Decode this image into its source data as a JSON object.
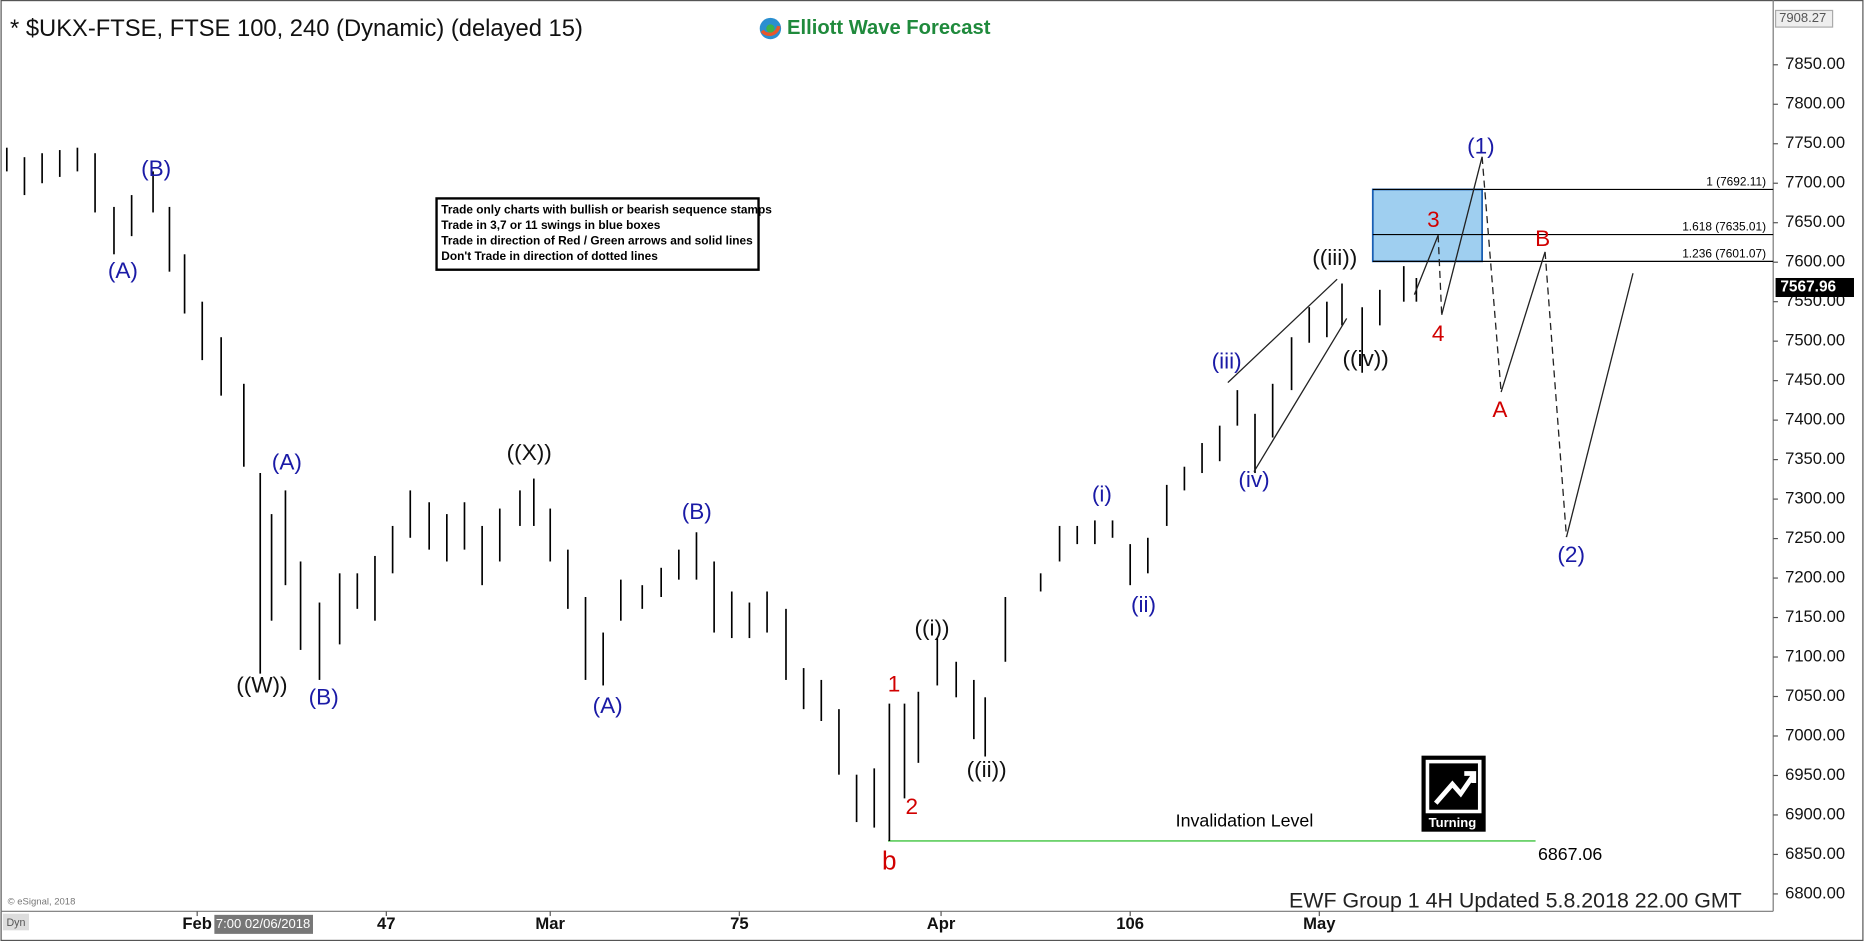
{
  "chart_data": {
    "type": "ohlc",
    "title": "* $UKX-FTSE, FTSE 100, 240 (Dynamic) (delayed 15)",
    "logo": "Elliott Wave Forecast",
    "notes": [
      "Trade only charts with bullish or bearish sequence stamps",
      "Trade in 3,7 or 11 swings in blue boxes",
      "Trade in direction of Red / Green arrows and solid lines",
      "Don't Trade in direction of dotted lines"
    ],
    "color": "#000000",
    "x": [
      16.9,
      18.3,
      19.7,
      21.1,
      22.5,
      23.9,
      25.4,
      26.8,
      28.5,
      29.8,
      31.0,
      32.4,
      33.9,
      35.7,
      37.0,
      37.9,
      39.0,
      40.2,
      41.7,
      43.3,
      44.7,
      46.1,
      47.5,
      48.9,
      50.4,
      51.8,
      53.2,
      54.6,
      56.0,
      57.6,
      58.7,
      60.0,
      61.4,
      62.8,
      64.2,
      65.6,
      67.3,
      68.8,
      70.2,
      71.6,
      73.0,
      74.4,
      75.8,
      77.2,
      78.7,
      80.1,
      81.5,
      82.9,
      84.3,
      85.7,
      86.9,
      88.1,
      89.2,
      90.7,
      92.2,
      93.6,
      94.5,
      96.1,
      97.5,
      98.9,
      100.4,
      101.8,
      103.2,
      104.6,
      106.0,
      107.4,
      108.9,
      110.3,
      111.7,
      113.1,
      114.5,
      115.9,
      117.3,
      118.8,
      120.2,
      121.6,
      122.8,
      124.4,
      125.8,
      127.7,
      128.7
    ],
    "high": [
      7745,
      7733,
      7738,
      7742,
      7745,
      7738,
      7670,
      7685,
      7715,
      7670,
      7610,
      7550,
      7505,
      7446,
      7333,
      7281,
      7311,
      7221,
      7169,
      7206,
      7206,
      7228,
      7266,
      7311,
      7296,
      7281,
      7296,
      7266,
      7288,
      7311,
      7326,
      7288,
      7236,
      7176,
      7131,
      7198,
      7191,
      7213,
      7236,
      7258,
      7221,
      7183,
      7169,
      7183,
      7161,
      7086,
      7071,
      7034,
      6951,
      6959,
      7041,
      7041,
      7056,
      7124,
      7094,
      7071,
      7049,
      7176,
      7213,
      7206,
      7266,
      7266,
      7273,
      7273,
      7243,
      7251,
      7318,
      7341,
      7371,
      7393,
      7438,
      7408,
      7446,
      7505,
      7543,
      7550,
      7573,
      7543,
      7565,
      7595,
      7580
    ],
    "low": [
      7715,
      7685,
      7700,
      7708,
      7715,
      7663,
      7610,
      7633,
      7663,
      7588,
      7535,
      7476,
      7431,
      7341,
      7079,
      7146,
      7191,
      7109,
      7071,
      7116,
      7161,
      7146,
      7206,
      7251,
      7236,
      7221,
      7236,
      7191,
      7221,
      7266,
      7266,
      7221,
      7161,
      7071,
      7064,
      7146,
      7161,
      7176,
      7198,
      7198,
      7131,
      7124,
      7124,
      7131,
      7071,
      7034,
      7019,
      6951,
      6891,
      6884,
      6867,
      6921,
      6966,
      7064,
      7049,
      6996,
      6974,
      7094,
      7213,
      7183,
      7221,
      7243,
      7243,
      7251,
      7191,
      7206,
      7266,
      7311,
      7333,
      7348,
      7393,
      7333,
      7378,
      7438,
      7498,
      7505,
      7520,
      7460,
      7520,
      7550,
      7550
    ],
    "xlim": [
      16.4,
      157
    ],
    "xticks": [
      {
        "value": 32,
        "label": "Feb"
      },
      47,
      {
        "value": 60,
        "label": "Mar"
      },
      75,
      {
        "value": 91,
        "label": "Apr"
      },
      106,
      {
        "value": 121,
        "label": "May"
      }
    ],
    "ylim": [
      6778,
      7920
    ],
    "yticks": [
      {
        "value": 6800,
        "label": "6800.00"
      },
      {
        "value": 6850,
        "label": "6850.00"
      },
      {
        "value": 6900,
        "label": "6900.00"
      },
      {
        "value": 6950,
        "label": "6950.00"
      },
      {
        "value": 7000,
        "label": "7000.00"
      },
      {
        "value": 7050,
        "label": "7050.00"
      },
      {
        "value": 7100,
        "label": "7100.00"
      },
      {
        "value": 7150,
        "label": "7150.00"
      },
      {
        "value": 7200,
        "label": "7200.00"
      },
      {
        "value": 7250,
        "label": "7250.00"
      },
      {
        "value": 7300,
        "label": "7300.00"
      },
      {
        "value": 7350,
        "label": "7350.00"
      },
      {
        "value": 7400,
        "label": "7400.00"
      },
      {
        "value": 7450,
        "label": "7450.00"
      },
      {
        "value": 7500,
        "label": "7500.00"
      },
      {
        "value": 7550,
        "label": "7550.00"
      },
      {
        "value": 7600,
        "label": "7600.00"
      },
      {
        "value": 7650,
        "label": "7650.00"
      },
      {
        "value": 7700,
        "label": "7700.00"
      },
      {
        "value": 7750,
        "label": "7750.00"
      },
      {
        "value": 7800,
        "label": "7800.00"
      },
      {
        "value": 7850,
        "label": "7850.00"
      }
    ],
    "top_value": 7908.27,
    "last_price": 7567.96,
    "fib_levels": [
      {
        "value": 7692.11,
        "label": "1 (7692.11)"
      },
      {
        "value": 7635.01,
        "label": "1.618 (7635.01)"
      },
      {
        "value": 7601.07,
        "label": "1.236 (7601.07)"
      }
    ],
    "invalidation": {
      "label": "Invalidation Level",
      "value": 6867.06
    },
    "wave_labels": [
      {
        "text": "(B)",
        "color": "#1a1aa6"
      },
      {
        "text": "(A)",
        "color": "#1a1aa6"
      },
      {
        "text": "(A)",
        "color": "#1a1aa6"
      },
      {
        "text": "((W))",
        "color": "#111111"
      },
      {
        "text": "(B)",
        "color": "#1a1aa6"
      },
      {
        "text": "((X))",
        "color": "#111111"
      },
      {
        "text": "(B)",
        "color": "#1a1aa6"
      },
      {
        "text": "(A)",
        "color": "#1a1aa6"
      },
      {
        "text": "((i))",
        "color": "#111111"
      },
      {
        "text": "1",
        "color": "#d10000"
      },
      {
        "text": "2",
        "color": "#d10000"
      },
      {
        "text": "b",
        "color": "#d10000"
      },
      {
        "text": "((ii))",
        "color": "#111111"
      },
      {
        "text": "(i)",
        "color": "#1a1aa6"
      },
      {
        "text": "(ii)",
        "color": "#1a1aa6"
      },
      {
        "text": "(iii)",
        "color": "#1a1aa6"
      },
      {
        "text": "(iv)",
        "color": "#1a1aa6"
      },
      {
        "text": "((iii))",
        "color": "#111111"
      },
      {
        "text": "((iv))",
        "color": "#111111"
      },
      {
        "text": "3",
        "color": "#d10000"
      },
      {
        "text": "4",
        "color": "#d10000"
      },
      {
        "text": "(1)",
        "color": "#1a1aa6"
      },
      {
        "text": "B",
        "color": "#d10000"
      },
      {
        "text": "A",
        "color": "#d10000"
      },
      {
        "text": "(2)",
        "color": "#1a1aa6"
      }
    ],
    "badge": "Turning",
    "footer": "EWF Group 1 4H Updated  5.8.2018 22.00 GMT",
    "credit": "© eSignal, 2018",
    "corner": "Dyn",
    "cursor_label": "7:00 02/06/2018"
  }
}
